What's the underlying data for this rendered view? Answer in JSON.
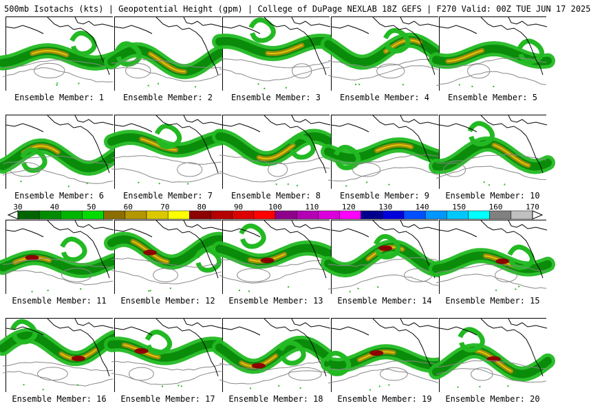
{
  "header": {
    "title": "500mb Isotachs (kts) | Geopotential Height (gpm) | College of DuPage NEXLAB   18Z GEFS | F270 Valid: 00Z TUE JUN 17 2025"
  },
  "panels": [
    {
      "label": "Ensemble Member: 1"
    },
    {
      "label": "Ensemble Member: 2"
    },
    {
      "label": "Ensemble Member: 3"
    },
    {
      "label": "Ensemble Member: 4"
    },
    {
      "label": "Ensemble Member: 5"
    },
    {
      "label": "Ensemble Member: 6"
    },
    {
      "label": "Ensemble Member: 7"
    },
    {
      "label": "Ensemble Member: 8"
    },
    {
      "label": "Ensemble Member: 9"
    },
    {
      "label": "Ensemble Member: 10"
    },
    {
      "label": "Ensemble Member: 11"
    },
    {
      "label": "Ensemble Member: 12"
    },
    {
      "label": "Ensemble Member: 13"
    },
    {
      "label": "Ensemble Member: 14"
    },
    {
      "label": "Ensemble Member: 15"
    },
    {
      "label": "Ensemble Member: 16"
    },
    {
      "label": "Ensemble Member: 17"
    },
    {
      "label": "Ensemble Member: 18"
    },
    {
      "label": "Ensemble Member: 19"
    },
    {
      "label": "Ensemble Member: 20"
    }
  ],
  "colorbar": {
    "labels": [
      "30",
      "40",
      "50",
      "60",
      "70",
      "80",
      "90",
      "100",
      "110",
      "120",
      "130",
      "140",
      "150",
      "160",
      "170"
    ],
    "colors": [
      "#006400",
      "#008c00",
      "#00b400",
      "#00dc00",
      "#8c6e00",
      "#b49600",
      "#dcc800",
      "#ffff00",
      "#8c0000",
      "#b40000",
      "#dc0000",
      "#ff0000",
      "#8c008c",
      "#b400b4",
      "#dc00dc",
      "#ff00ff",
      "#00008c",
      "#0000dc",
      "#0050ff",
      "#0096ff",
      "#00c8ff",
      "#00ffff",
      "#808080",
      "#c0c0c0"
    ]
  },
  "colors": {
    "contour": "#888888",
    "coast": "#000000",
    "jet_light": "#22b922",
    "jet_mid": "#0a8c0a",
    "jet_core_olive": "#a08a10",
    "jet_core_yellow": "#e0c800",
    "jet_max": "#8c0000"
  }
}
